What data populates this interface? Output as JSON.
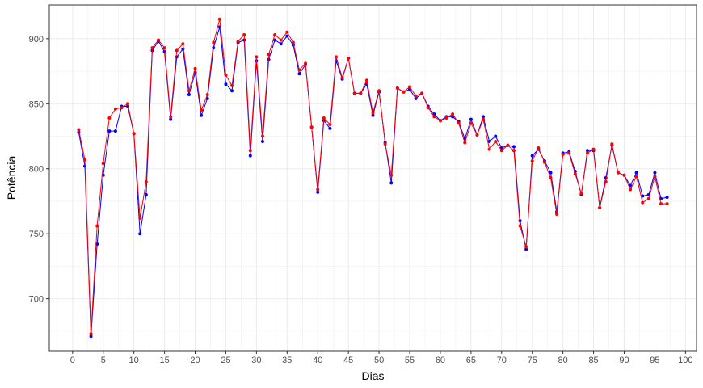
{
  "chart_data": {
    "type": "line",
    "xlabel": "Dias",
    "ylabel": "Potência",
    "xlim": [
      -3.8,
      101.8
    ],
    "ylim": [
      660,
      926
    ],
    "xticks": [
      0,
      5,
      10,
      15,
      20,
      25,
      30,
      35,
      40,
      45,
      50,
      55,
      60,
      65,
      70,
      75,
      80,
      85,
      90,
      95,
      100
    ],
    "yticks": [
      700,
      750,
      800,
      850,
      900
    ],
    "grid": true,
    "legend": "none",
    "x": [
      1,
      2,
      3,
      4,
      5,
      6,
      7,
      8,
      9,
      10,
      11,
      12,
      13,
      14,
      15,
      16,
      17,
      18,
      19,
      20,
      21,
      22,
      23,
      24,
      25,
      26,
      27,
      28,
      29,
      30,
      31,
      32,
      33,
      34,
      35,
      36,
      37,
      38,
      39,
      40,
      41,
      42,
      43,
      44,
      45,
      46,
      47,
      48,
      49,
      50,
      51,
      52,
      53,
      54,
      55,
      56,
      57,
      58,
      59,
      60,
      61,
      62,
      63,
      64,
      65,
      66,
      67,
      68,
      69,
      70,
      71,
      72,
      73,
      74,
      75,
      76,
      77,
      78,
      79,
      80,
      81,
      82,
      83,
      84,
      85,
      86,
      87,
      88,
      89,
      90,
      91,
      92,
      93,
      94,
      95,
      96,
      97
    ],
    "series": [
      {
        "color": "#0000ff",
        "values": [
          828,
          802,
          671,
          742,
          795,
          829,
          829,
          848,
          848,
          827,
          750,
          780,
          891,
          898,
          890,
          838,
          886,
          892,
          857,
          874,
          841,
          854,
          893,
          909,
          865,
          860,
          897,
          899,
          810,
          883,
          821,
          884,
          899,
          896,
          902,
          895,
          873,
          880,
          832,
          782,
          837,
          831,
          883,
          869,
          885,
          858,
          858,
          865,
          841,
          859,
          820,
          789,
          862,
          859,
          861,
          854,
          858,
          848,
          842,
          837,
          840,
          840,
          836,
          823,
          838,
          826,
          840,
          821,
          825,
          816,
          818,
          817,
          760,
          738,
          810,
          815,
          806,
          797,
          767,
          812,
          813,
          798,
          780,
          814,
          814,
          770,
          793,
          818,
          797,
          795,
          787,
          797,
          779,
          780,
          797,
          777,
          778
        ]
      },
      {
        "color": "#ff0000",
        "values": [
          830,
          807,
          673,
          756,
          804,
          839,
          846,
          847,
          850,
          827,
          762,
          790,
          893,
          899,
          893,
          840,
          891,
          896,
          860,
          877,
          845,
          857,
          897,
          915,
          872,
          864,
          898,
          903,
          814,
          886,
          825,
          888,
          903,
          899,
          905,
          897,
          876,
          881,
          832,
          784,
          839,
          834,
          886,
          870,
          885,
          858,
          858,
          868,
          843,
          860,
          819,
          795,
          862,
          859,
          863,
          856,
          858,
          847,
          840,
          837,
          839,
          842,
          835,
          820,
          835,
          826,
          838,
          815,
          821,
          814,
          818,
          814,
          756,
          740,
          806,
          816,
          805,
          793,
          765,
          811,
          812,
          796,
          781,
          812,
          815,
          770,
          790,
          819,
          797,
          795,
          784,
          794,
          774,
          777,
          794,
          773,
          773
        ]
      }
    ]
  }
}
